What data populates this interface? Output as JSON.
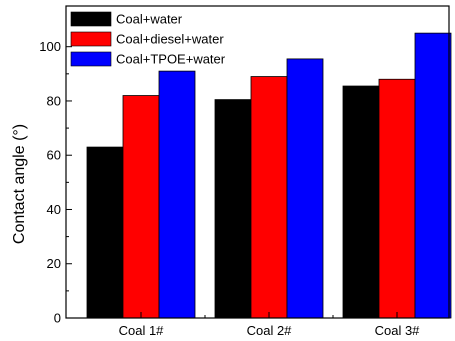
{
  "chart_data": {
    "type": "bar",
    "categories": [
      "Coal 1#",
      "Coal 2#",
      "Coal 3#"
    ],
    "series": [
      {
        "name": "Coal+water",
        "color": "#000000",
        "values": [
          63,
          80.5,
          85.5
        ]
      },
      {
        "name": "Coal+diesel+water",
        "color": "#ff0000",
        "values": [
          82,
          89,
          88
        ]
      },
      {
        "name": "Coal+TPOE+water",
        "color": "#0000ff",
        "values": [
          91,
          95.5,
          105
        ]
      }
    ],
    "title": "",
    "xlabel": "",
    "ylabel": "Contact angle (°)",
    "ylim": [
      0,
      115
    ],
    "yticks": [
      0,
      20,
      40,
      60,
      80,
      100
    ],
    "grid": false,
    "legend_position": "top-left"
  }
}
